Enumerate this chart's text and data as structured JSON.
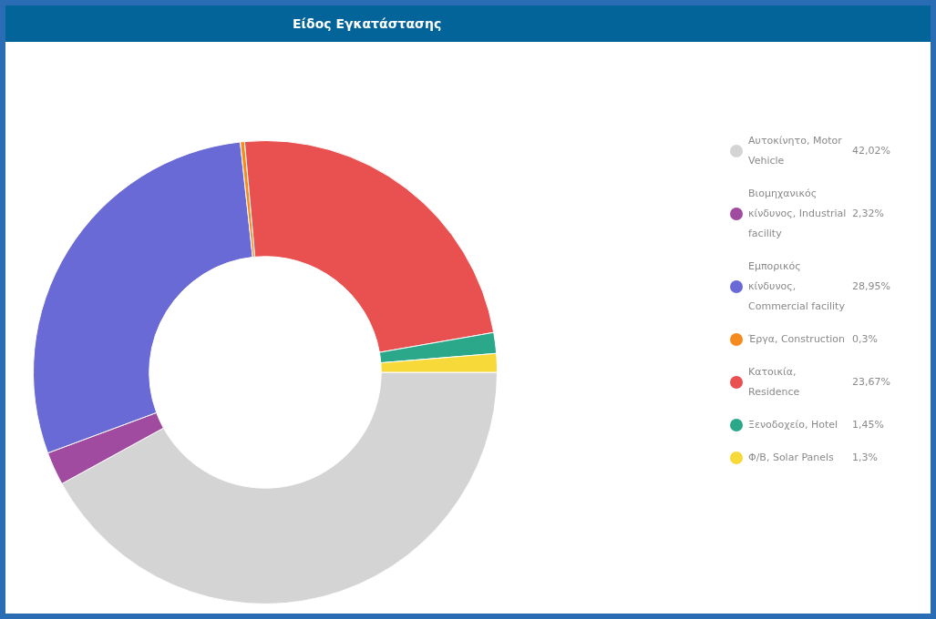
{
  "chart_data": {
    "type": "donut",
    "title": "Είδος Εγκατάστασης",
    "categories": [
      "Αυτοκίνητο, Motor Vehicle",
      "Βιομηχανικός κίνδυνος, Industrial facility",
      "Εμπορικός κίνδυνος, Commercial facility",
      "Έργα, Construction",
      "Κατοικία, Residence",
      "Ξενοδοχείο, Hotel",
      "Φ/Β, Solar Panels"
    ],
    "values": [
      42.02,
      2.32,
      28.95,
      0.3,
      23.67,
      1.45,
      1.3
    ],
    "value_labels": [
      "42,02%",
      "2,32%",
      "28,95%",
      "0,3%",
      "23,67%",
      "1,45%",
      "1,3%"
    ],
    "colors": [
      "#d4d4d4",
      "#a04aa0",
      "#6a6ad6",
      "#f58a1f",
      "#e95050",
      "#2aa889",
      "#f7d93a"
    ],
    "legend": "right"
  }
}
